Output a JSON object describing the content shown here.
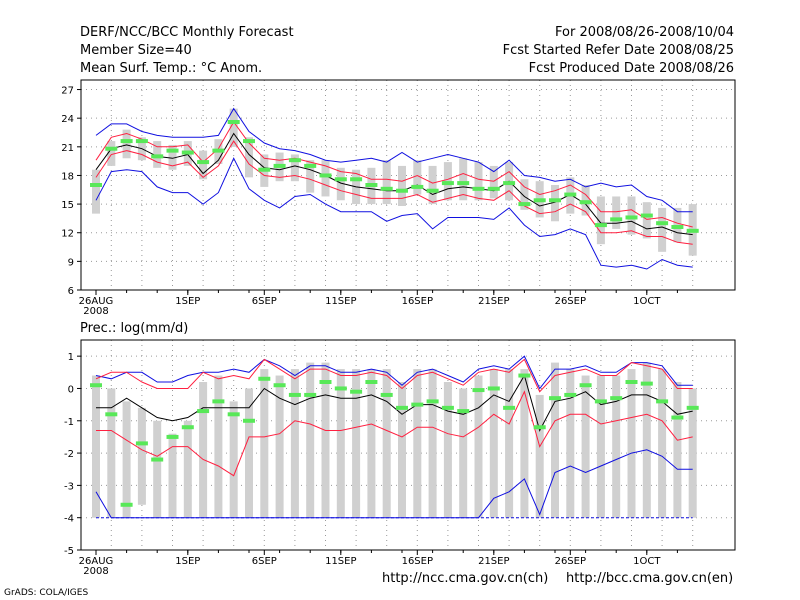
{
  "header": {
    "title": "DERF/NCC/BCC Monthly Forecast",
    "member_size": "Member Size=40",
    "variable": "Mean Surf. Temp.: °C Anom.",
    "period": "For 2008/08/26-2008/10/04",
    "start_date": "Fcst Started Refer Date 2008/08/25",
    "produced_date": "Fcst Produced Date 2008/08/26"
  },
  "footer": {
    "url_ncc": "http://ncc.cma.gov.cn(ch)",
    "url_bcc": "http://bcc.cma.gov.cn(en)",
    "credit": "GrADS: COLA/IGES"
  },
  "colors": {
    "box": "#d0d0d0",
    "median": "#58e858",
    "mean": "#000000",
    "stdev": "#ff2040",
    "extreme": "#1010e0"
  },
  "chart_data": [
    {
      "type": "box",
      "title": "Mean Surf. Temp.: °C Anom.",
      "x_tick_labels": [
        "26AUG",
        "1SEP",
        "6SEP",
        "11SEP",
        "16SEP",
        "21SEP",
        "26SEP",
        "1OCT"
      ],
      "x_tick_days": [
        0,
        6,
        11,
        16,
        21,
        26,
        31,
        36
      ],
      "x_year_label": "2008",
      "ylim": [
        6,
        28
      ],
      "y_ticks": [
        6,
        9,
        12,
        15,
        18,
        21,
        24,
        27
      ],
      "days": [
        0,
        1,
        2,
        3,
        4,
        5,
        6,
        7,
        8,
        9,
        10,
        11,
        12,
        13,
        14,
        15,
        16,
        17,
        18,
        19,
        20,
        21,
        22,
        23,
        24,
        25,
        26,
        27,
        28,
        29,
        30,
        31,
        32,
        33,
        34,
        35,
        36,
        37,
        38,
        39
      ],
      "box_low": [
        14.0,
        19.0,
        19.8,
        19.6,
        18.8,
        18.6,
        19.0,
        17.6,
        19.2,
        21.0,
        17.8,
        16.8,
        17.4,
        17.4,
        16.2,
        15.8,
        15.4,
        15.0,
        15.0,
        15.0,
        14.8,
        16.0,
        15.0,
        15.4,
        15.4,
        15.4,
        15.6,
        15.4,
        14.4,
        13.6,
        13.2,
        14.0,
        13.8,
        10.8,
        12.4,
        11.8,
        11.4,
        10.0,
        11.0,
        9.6
      ],
      "box_high": [
        18.6,
        21.6,
        22.8,
        22.0,
        21.6,
        21.2,
        21.6,
        20.6,
        21.8,
        25.0,
        22.0,
        20.2,
        20.4,
        20.2,
        19.6,
        19.6,
        18.8,
        18.6,
        18.8,
        19.6,
        19.0,
        19.6,
        19.0,
        19.4,
        19.8,
        19.4,
        19.0,
        19.4,
        17.6,
        17.4,
        17.0,
        17.8,
        17.0,
        15.8,
        15.8,
        15.8,
        15.2,
        14.6,
        14.6,
        15.0
      ],
      "median": [
        17.0,
        20.8,
        21.6,
        21.6,
        20.0,
        20.6,
        20.4,
        19.4,
        20.6,
        23.6,
        21.6,
        18.6,
        19.0,
        19.6,
        19.0,
        18.0,
        17.6,
        17.6,
        17.0,
        16.6,
        16.4,
        16.8,
        16.4,
        17.2,
        17.2,
        16.6,
        16.6,
        17.2,
        15.0,
        15.4,
        15.4,
        16.0,
        15.2,
        12.8,
        13.4,
        13.6,
        13.8,
        13.0,
        12.6,
        12.2
      ],
      "mean": [
        18.6,
        20.8,
        21.2,
        20.8,
        20.0,
        19.8,
        20.2,
        18.2,
        19.6,
        22.4,
        20.2,
        18.8,
        18.6,
        19.0,
        18.6,
        18.0,
        17.2,
        16.8,
        16.6,
        16.4,
        16.4,
        17.0,
        16.0,
        16.6,
        16.8,
        16.6,
        16.4,
        17.4,
        15.8,
        14.8,
        15.2,
        16.0,
        15.0,
        13.0,
        13.0,
        13.2,
        12.4,
        12.6,
        12.0,
        11.8
      ],
      "mean_plus_sd": [
        19.6,
        22.0,
        22.4,
        21.8,
        21.0,
        21.0,
        21.2,
        19.4,
        20.8,
        23.6,
        21.4,
        19.8,
        19.6,
        19.8,
        19.4,
        19.0,
        18.4,
        18.2,
        17.6,
        17.6,
        17.4,
        18.0,
        17.2,
        17.6,
        18.2,
        17.6,
        17.4,
        18.4,
        16.8,
        16.0,
        16.4,
        17.0,
        16.0,
        14.2,
        14.2,
        14.4,
        13.4,
        13.6,
        13.0,
        12.6
      ],
      "mean_minus_sd": [
        17.8,
        20.2,
        20.6,
        20.2,
        19.4,
        19.0,
        19.4,
        17.8,
        19.0,
        21.6,
        19.2,
        18.0,
        17.8,
        18.0,
        17.6,
        17.0,
        16.4,
        16.0,
        15.6,
        15.6,
        15.6,
        16.0,
        15.2,
        15.6,
        16.0,
        15.6,
        15.4,
        16.4,
        14.8,
        14.0,
        14.2,
        15.0,
        14.2,
        12.0,
        12.0,
        12.2,
        11.6,
        11.6,
        11.0,
        10.8
      ],
      "max": [
        22.2,
        23.4,
        23.4,
        22.6,
        22.2,
        22.0,
        22.0,
        22.0,
        22.2,
        25.0,
        22.6,
        21.4,
        20.8,
        20.6,
        20.2,
        19.6,
        19.4,
        19.6,
        19.8,
        19.4,
        20.4,
        19.4,
        19.8,
        20.2,
        19.8,
        19.4,
        18.4,
        19.6,
        18.0,
        17.8,
        17.4,
        17.6,
        16.8,
        17.2,
        16.8,
        17.0,
        15.8,
        15.4,
        14.2,
        14.2
      ],
      "min": [
        15.4,
        18.4,
        18.6,
        18.4,
        16.8,
        16.2,
        16.2,
        15.0,
        16.2,
        19.8,
        16.6,
        15.4,
        14.6,
        15.8,
        16.0,
        15.0,
        14.2,
        14.2,
        14.2,
        13.2,
        13.8,
        14.0,
        12.4,
        13.6,
        13.6,
        13.6,
        13.4,
        14.6,
        12.8,
        11.6,
        11.8,
        12.4,
        11.8,
        8.6,
        8.4,
        8.6,
        8.2,
        9.2,
        8.6,
        8.4
      ]
    },
    {
      "type": "box",
      "title": "Prec.: log(mm/d)",
      "x_tick_labels": [
        "26AUG",
        "1SEP",
        "6SEP",
        "11SEP",
        "16SEP",
        "21SEP",
        "26SEP",
        "1OCT"
      ],
      "x_tick_days": [
        0,
        6,
        11,
        16,
        21,
        26,
        31,
        36
      ],
      "x_year_label": "2008",
      "ylim": [
        -5,
        1.5
      ],
      "y_ticks": [
        -5,
        -4,
        -3,
        -2,
        -1,
        0,
        1
      ],
      "days": [
        0,
        1,
        2,
        3,
        4,
        5,
        6,
        7,
        8,
        9,
        10,
        11,
        12,
        13,
        14,
        15,
        16,
        17,
        18,
        19,
        20,
        21,
        22,
        23,
        24,
        25,
        26,
        27,
        28,
        29,
        30,
        31,
        32,
        33,
        34,
        35,
        36,
        37,
        38,
        39
      ],
      "box_low": [
        -4,
        -4,
        -4,
        -3.6,
        -4,
        -4,
        -4,
        -4,
        -4,
        -4,
        -4,
        -4,
        -4,
        -4,
        -4,
        -4,
        -4,
        -4,
        -4,
        -4,
        -4,
        -4,
        -4,
        -4,
        -4,
        -4,
        -4,
        -4,
        -4,
        -4,
        -4,
        -4,
        -4,
        -4,
        -4,
        -4,
        -4,
        -4,
        -4,
        -4
      ],
      "box_high": [
        0.4,
        0.0,
        -0.4,
        -0.6,
        -1.0,
        -1.4,
        -1.0,
        0.2,
        0.4,
        -0.4,
        0.0,
        0.6,
        0.4,
        0.6,
        0.8,
        0.8,
        0.6,
        0.6,
        0.6,
        0.6,
        0.2,
        0.6,
        0.6,
        0.2,
        0.0,
        0.4,
        0.6,
        0.6,
        0.6,
        -0.2,
        0.8,
        0.6,
        0.4,
        0.4,
        0.4,
        0.6,
        0.8,
        0.6,
        0.2,
        0.0
      ],
      "median": [
        0.1,
        -0.8,
        -3.6,
        -1.7,
        -2.2,
        -1.5,
        -1.2,
        -0.7,
        -0.4,
        -0.8,
        -1.0,
        0.3,
        0.1,
        -0.2,
        -0.2,
        0.2,
        0.0,
        -0.1,
        0.2,
        -0.2,
        -0.6,
        -0.5,
        -0.4,
        -0.6,
        -0.7,
        -0.05,
        0.0,
        -0.6,
        0.4,
        -1.2,
        -0.3,
        -0.2,
        0.1,
        -0.4,
        -0.3,
        0.2,
        0.15,
        -0.4,
        -0.9,
        -0.6
      ],
      "mean": [
        -0.6,
        -0.6,
        -0.3,
        -0.6,
        -0.9,
        -1.0,
        -0.9,
        -0.6,
        -0.6,
        -0.6,
        -0.6,
        0.0,
        -0.3,
        -0.5,
        -0.3,
        -0.2,
        -0.3,
        -0.3,
        -0.2,
        -0.4,
        -0.8,
        -0.5,
        -0.5,
        -0.7,
        -0.8,
        -0.6,
        -0.2,
        -0.4,
        0.4,
        -1.3,
        -0.4,
        -0.3,
        -0.1,
        -0.5,
        -0.4,
        -0.2,
        -0.2,
        -0.4,
        -0.8,
        -0.7
      ],
      "mean_plus_sd": [
        0.3,
        0.5,
        0.5,
        0.2,
        0.0,
        0.0,
        0.0,
        0.5,
        0.3,
        0.4,
        0.3,
        0.9,
        0.6,
        0.3,
        0.6,
        0.6,
        0.4,
        0.4,
        0.5,
        0.4,
        0.0,
        0.4,
        0.5,
        0.3,
        0.1,
        0.5,
        0.6,
        0.5,
        0.9,
        -0.1,
        0.4,
        0.5,
        0.6,
        0.4,
        0.4,
        0.8,
        0.7,
        0.6,
        0.0,
        0.0
      ],
      "mean_minus_sd": [
        -1.3,
        -1.3,
        -1.6,
        -1.9,
        -2.1,
        -1.8,
        -1.8,
        -2.2,
        -2.4,
        -2.7,
        -1.5,
        -1.5,
        -1.4,
        -1.0,
        -1.1,
        -1.3,
        -1.3,
        -1.2,
        -1.1,
        -1.3,
        -1.5,
        -1.2,
        -1.2,
        -1.4,
        -1.5,
        -1.2,
        -0.8,
        -1.1,
        -0.1,
        -1.8,
        -1.0,
        -0.8,
        -0.8,
        -1.1,
        -1.0,
        -0.9,
        -0.8,
        -1.0,
        -1.6,
        -1.5
      ],
      "max": [
        0.4,
        0.3,
        0.5,
        0.5,
        0.2,
        0.2,
        0.4,
        0.5,
        0.5,
        0.6,
        0.5,
        0.9,
        0.7,
        0.4,
        0.7,
        0.7,
        0.5,
        0.5,
        0.6,
        0.5,
        0.1,
        0.5,
        0.6,
        0.4,
        0.2,
        0.6,
        0.7,
        0.6,
        1.0,
        0.0,
        0.6,
        0.6,
        0.7,
        0.5,
        0.5,
        0.8,
        0.8,
        0.7,
        0.1,
        0.1
      ],
      "min": [
        -3.2,
        -4,
        -4,
        -4,
        -4,
        -4,
        -4,
        -4,
        -4,
        -4,
        -4,
        -4,
        -4,
        -4,
        -4,
        -4,
        -4,
        -4,
        -4,
        -4,
        -4,
        -4,
        -4,
        -4,
        -4,
        -4,
        -3.4,
        -3.2,
        -2.8,
        -3.9,
        -2.6,
        -2.4,
        -2.6,
        -2.4,
        -2.2,
        -2.0,
        -1.9,
        -2.1,
        -2.5,
        -2.5
      ],
      "floor_line": -4
    }
  ]
}
